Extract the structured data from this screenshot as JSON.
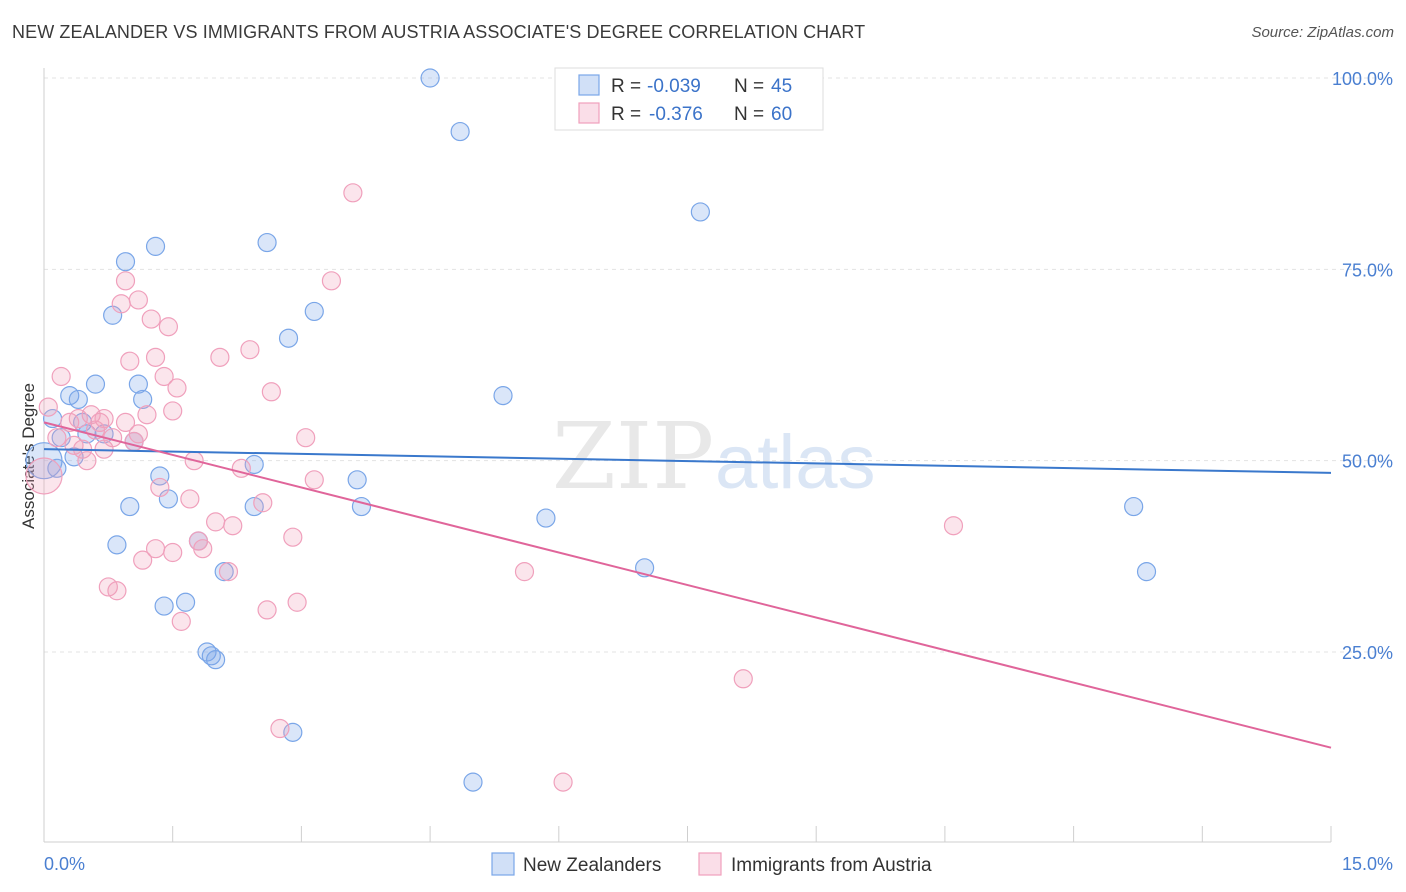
{
  "title": "NEW ZEALANDER VS IMMIGRANTS FROM AUSTRIA ASSOCIATE'S DEGREE CORRELATION CHART",
  "source": "Source: ZipAtlas.com",
  "watermark": {
    "zip": "ZIP",
    "atlas": "atlas"
  },
  "stats": {
    "r_label": "R =",
    "n_label": "N =",
    "rows": [
      {
        "series": "New Zealanders",
        "r": "-0.039",
        "n": "45"
      },
      {
        "series": "Immigrants from Austria",
        "r": "-0.376",
        "n": "60"
      }
    ]
  },
  "chart_data": {
    "type": "scatter",
    "title": "NEW ZEALANDER VS IMMIGRANTS FROM AUSTRIA ASSOCIATE'S DEGREE CORRELATION CHART",
    "xlabel": "",
    "ylabel": "Associate's Degree",
    "xlim": [
      0,
      15
    ],
    "ylim": [
      0,
      105
    ],
    "x_ticks": [
      0,
      1.5,
      3,
      4.5,
      6,
      7.5,
      9,
      10.5,
      12,
      13.5,
      15
    ],
    "x_tick_labels": {
      "min": "0.0%",
      "max": "15.0%"
    },
    "y_ticks": [
      25,
      50,
      75,
      100
    ],
    "y_tick_labels": [
      "25.0%",
      "50.0%",
      "75.0%",
      "100.0%"
    ],
    "grid": "horizontal dashed",
    "legend": "bottom-center",
    "series": [
      {
        "name": "New Zealanders",
        "color": "#7aa6e8",
        "fill": "rgba(122,166,232,0.28)",
        "line_color": "#3a78cc",
        "trend": {
          "x": [
            0,
            15
          ],
          "y": [
            51.5,
            48.4
          ]
        },
        "points": [
          [
            0.0,
            50.0,
            16
          ],
          [
            0.1,
            55.5,
            10
          ],
          [
            0.15,
            49.0,
            10
          ],
          [
            0.2,
            53.0,
            10
          ],
          [
            0.3,
            58.5,
            10
          ],
          [
            0.35,
            50.5,
            10
          ],
          [
            0.4,
            58.0,
            10
          ],
          [
            0.45,
            55.0,
            10
          ],
          [
            0.5,
            53.5,
            10
          ],
          [
            0.6,
            60.0,
            10
          ],
          [
            0.7,
            53.5,
            10
          ],
          [
            0.8,
            69.0,
            10
          ],
          [
            0.85,
            39.0,
            10
          ],
          [
            0.95,
            76.0,
            10
          ],
          [
            1.0,
            44.0,
            10
          ],
          [
            1.05,
            52.5,
            10
          ],
          [
            1.1,
            60.0,
            10
          ],
          [
            1.15,
            58.0,
            10
          ],
          [
            1.3,
            78.0,
            10
          ],
          [
            1.35,
            48.0,
            10
          ],
          [
            1.4,
            31.0,
            10
          ],
          [
            1.45,
            45.0,
            10
          ],
          [
            1.65,
            31.5,
            10
          ],
          [
            1.8,
            39.5,
            10
          ],
          [
            1.9,
            25.0,
            10
          ],
          [
            1.95,
            24.5,
            10
          ],
          [
            2.1,
            35.5,
            10
          ],
          [
            2.45,
            44.0,
            10
          ],
          [
            2.45,
            49.5,
            10
          ],
          [
            2.6,
            78.5,
            10
          ],
          [
            2.85,
            66.0,
            10
          ],
          [
            2.9,
            14.5,
            10
          ],
          [
            3.15,
            69.5,
            10
          ],
          [
            3.65,
            47.5,
            10
          ],
          [
            3.7,
            44.0,
            10
          ],
          [
            4.5,
            100.0,
            10
          ],
          [
            4.85,
            93.0,
            10
          ],
          [
            5.0,
            8.0,
            10
          ],
          [
            5.35,
            58.5,
            10
          ],
          [
            5.85,
            42.5,
            10
          ],
          [
            7.0,
            36.0,
            10
          ],
          [
            7.65,
            82.5,
            10
          ],
          [
            12.7,
            44.0,
            10
          ],
          [
            12.85,
            35.5,
            10
          ],
          [
            2.0,
            24.0,
            10
          ]
        ]
      },
      {
        "name": "Immigrants from Austria",
        "color": "#f0a0bc",
        "fill": "rgba(240,160,188,0.28)",
        "line_color": "#e0659a",
        "trend": {
          "x": [
            0,
            15
          ],
          "y": [
            55.0,
            12.5
          ]
        },
        "points": [
          [
            0.0,
            48.0,
            16
          ],
          [
            0.05,
            57.0,
            10
          ],
          [
            0.15,
            53.0,
            10
          ],
          [
            0.2,
            61.0,
            10
          ],
          [
            0.3,
            55.0,
            10
          ],
          [
            0.35,
            52.0,
            10
          ],
          [
            0.4,
            55.5,
            10
          ],
          [
            0.45,
            51.5,
            10
          ],
          [
            0.5,
            50.0,
            10
          ],
          [
            0.55,
            56.0,
            10
          ],
          [
            0.6,
            54.0,
            10
          ],
          [
            0.65,
            55.0,
            10
          ],
          [
            0.7,
            51.5,
            10
          ],
          [
            0.75,
            33.5,
            10
          ],
          [
            0.8,
            53.0,
            10
          ],
          [
            0.85,
            33.0,
            10
          ],
          [
            0.9,
            70.5,
            10
          ],
          [
            0.95,
            73.5,
            10
          ],
          [
            1.0,
            63.0,
            10
          ],
          [
            1.05,
            52.5,
            10
          ],
          [
            1.1,
            71.0,
            10
          ],
          [
            1.15,
            37.0,
            10
          ],
          [
            1.2,
            56.0,
            10
          ],
          [
            1.25,
            68.5,
            10
          ],
          [
            1.3,
            63.5,
            10
          ],
          [
            1.35,
            46.5,
            10
          ],
          [
            1.4,
            61.0,
            10
          ],
          [
            1.45,
            67.5,
            10
          ],
          [
            1.5,
            56.5,
            10
          ],
          [
            1.55,
            59.5,
            10
          ],
          [
            1.6,
            29.0,
            10
          ],
          [
            1.75,
            50.0,
            10
          ],
          [
            1.8,
            39.5,
            10
          ],
          [
            1.85,
            38.5,
            10
          ],
          [
            2.0,
            42.0,
            10
          ],
          [
            2.05,
            63.5,
            10
          ],
          [
            2.15,
            35.5,
            10
          ],
          [
            2.2,
            41.5,
            10
          ],
          [
            2.3,
            49.0,
            10
          ],
          [
            2.4,
            64.5,
            10
          ],
          [
            2.55,
            44.5,
            10
          ],
          [
            2.6,
            30.5,
            10
          ],
          [
            2.65,
            59.0,
            10
          ],
          [
            2.75,
            15.0,
            10
          ],
          [
            2.9,
            40.0,
            10
          ],
          [
            2.95,
            31.5,
            10
          ],
          [
            3.05,
            53.0,
            10
          ],
          [
            3.15,
            47.5,
            10
          ],
          [
            3.35,
            73.5,
            10
          ],
          [
            3.6,
            85.0,
            10
          ],
          [
            1.3,
            38.5,
            10
          ],
          [
            1.5,
            38.0,
            10
          ],
          [
            1.7,
            45.0,
            10
          ],
          [
            5.6,
            35.5,
            10
          ],
          [
            6.05,
            8.0,
            10
          ],
          [
            8.15,
            21.5,
            10
          ],
          [
            10.6,
            41.5,
            10
          ],
          [
            0.95,
            55.0,
            10
          ],
          [
            0.7,
            55.5,
            10
          ],
          [
            1.1,
            53.5,
            10
          ]
        ]
      }
    ]
  }
}
